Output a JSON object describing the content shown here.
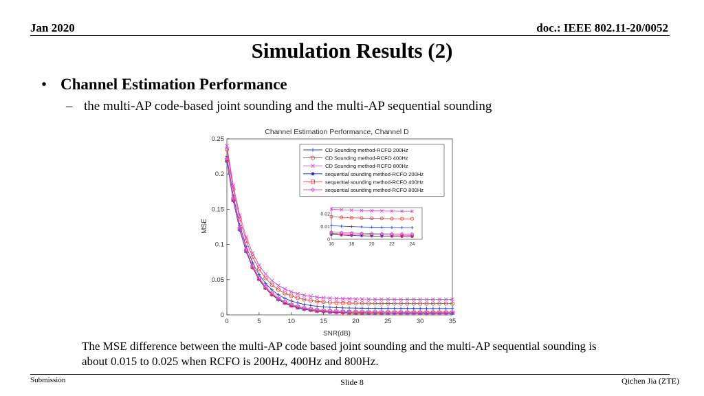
{
  "header": {
    "date": "Jan 2020",
    "doc": "doc.: IEEE 802.11-20/0052"
  },
  "title": "Simulation Results (2)",
  "bullet": {
    "marker": "•",
    "text": "Channel Estimation Performance"
  },
  "subbullet": {
    "marker": "–",
    "text": "the multi-AP code-based joint sounding and the multi-AP sequential sounding"
  },
  "caption": "The MSE difference between the multi-AP code based joint sounding and the multi-AP sequential sounding is about 0.015 to 0.025 when RCFO is 200Hz, 400Hz and 800Hz.",
  "footer": {
    "left": "Submission",
    "center": "Slide 8",
    "right": "Qichen Jia (ZTE)"
  },
  "chart_data": {
    "type": "line",
    "title": "Channel Estimation Performance, Channel D",
    "xlabel": "SNR(dB)",
    "ylabel": "MSE",
    "xlim": [
      0,
      35
    ],
    "ylim": [
      0,
      0.25
    ],
    "xticks": [
      0,
      5,
      10,
      15,
      20,
      25,
      30,
      35
    ],
    "yticks": [
      0,
      0.05,
      0.1,
      0.15,
      0.2,
      0.25
    ],
    "grid": false,
    "legend_position": "top-right",
    "x": [
      0,
      1,
      2,
      3,
      4,
      5,
      6,
      7,
      8,
      9,
      10,
      11,
      12,
      13,
      14,
      15,
      16,
      17,
      18,
      19,
      20,
      21,
      22,
      23,
      24,
      25,
      26,
      27,
      28,
      29,
      30,
      31,
      32,
      33,
      34,
      35
    ],
    "series": [
      {
        "name": "CD Sounding method-RCFO 200Hz",
        "color": "#1f3fd8",
        "marker": "plus",
        "y0": 0.225,
        "floor": 0.009
      },
      {
        "name": "CD Sounding method-RCFO 400Hz",
        "color": "#e8402e",
        "marker": "circle",
        "y0": 0.235,
        "floor": 0.016
      },
      {
        "name": "CD Sounding method-RCFO 800Hz",
        "color": "#e040e0",
        "marker": "x",
        "y0": 0.24,
        "floor": 0.022
      },
      {
        "name": "sequential sounding method-RCFO 200Hz",
        "color": "#0a1aa8",
        "marker": "star",
        "y0": 0.218,
        "floor": 0.002
      },
      {
        "name": "sequential sounding method-RCFO 400Hz",
        "color": "#e05050",
        "marker": "square",
        "y0": 0.22,
        "floor": 0.003
      },
      {
        "name": "sequential sounding method-RCFO 800Hz",
        "color": "#e848e8",
        "marker": "diamond",
        "y0": 0.222,
        "floor": 0.004
      }
    ],
    "decay_rate_per_db": 0.3,
    "inset": {
      "xlim": [
        16,
        25
      ],
      "ylim": [
        0,
        0.025
      ],
      "xticks": [
        16,
        18,
        20,
        22,
        24
      ],
      "ytick_labels": [
        "0",
        "0.01",
        "0.02"
      ],
      "ytick_values": [
        0,
        0.01,
        0.02
      ]
    }
  }
}
